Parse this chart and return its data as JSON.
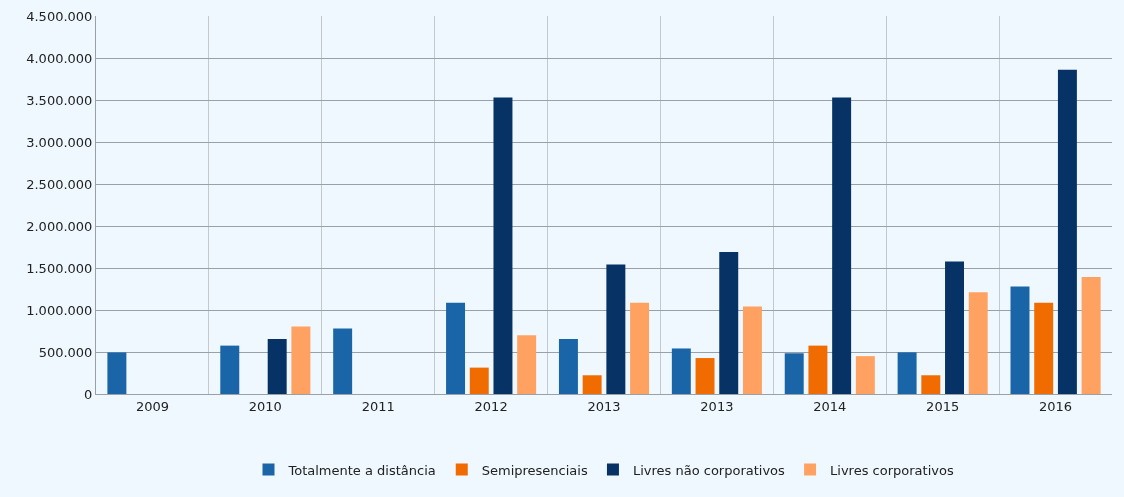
{
  "chart_data": {
    "type": "bar",
    "categories": [
      "2009",
      "2010",
      "2011",
      "2012",
      "2013",
      "2013",
      "2014",
      "2015",
      "2016"
    ],
    "series": [
      {
        "name": "Totalmente a distância",
        "color": "#1a65a8",
        "values": [
          495000,
          576000,
          780000,
          1087000,
          655000,
          542000,
          485000,
          496000,
          1280000
        ]
      },
      {
        "name": "Semipresenciais",
        "color": "#f06c00",
        "values": [
          null,
          null,
          null,
          314000,
          223000,
          428000,
          576000,
          223000,
          1087000
        ]
      },
      {
        "name": "Livres não corporativos",
        "color": "#063266",
        "values": [
          null,
          655000,
          null,
          3530000,
          1542000,
          1689000,
          3530000,
          1576000,
          3860000
        ]
      },
      {
        "name": "Livres corporativos",
        "color": "#ffa261",
        "values": [
          null,
          803000,
          null,
          700000,
          1087000,
          1042000,
          451000,
          1212000,
          1394000
        ]
      }
    ],
    "ylim": [
      0,
      4500000
    ],
    "yticks": [
      {
        "value": 0,
        "label": "0"
      },
      {
        "value": 500000,
        "label": "500.000"
      },
      {
        "value": 1000000,
        "label": "1.000.000"
      },
      {
        "value": 1500000,
        "label": "1.500.000"
      },
      {
        "value": 2000000,
        "label": "2.000.000"
      },
      {
        "value": 2500000,
        "label": "2.500.000"
      },
      {
        "value": 3000000,
        "label": "3.000.000"
      },
      {
        "value": 3500000,
        "label": "3.500.000"
      },
      {
        "value": 4000000,
        "label": "4.000.000"
      },
      {
        "value": 4500000,
        "label": "4.500.000"
      }
    ],
    "grid": true,
    "legend": "bottom"
  }
}
